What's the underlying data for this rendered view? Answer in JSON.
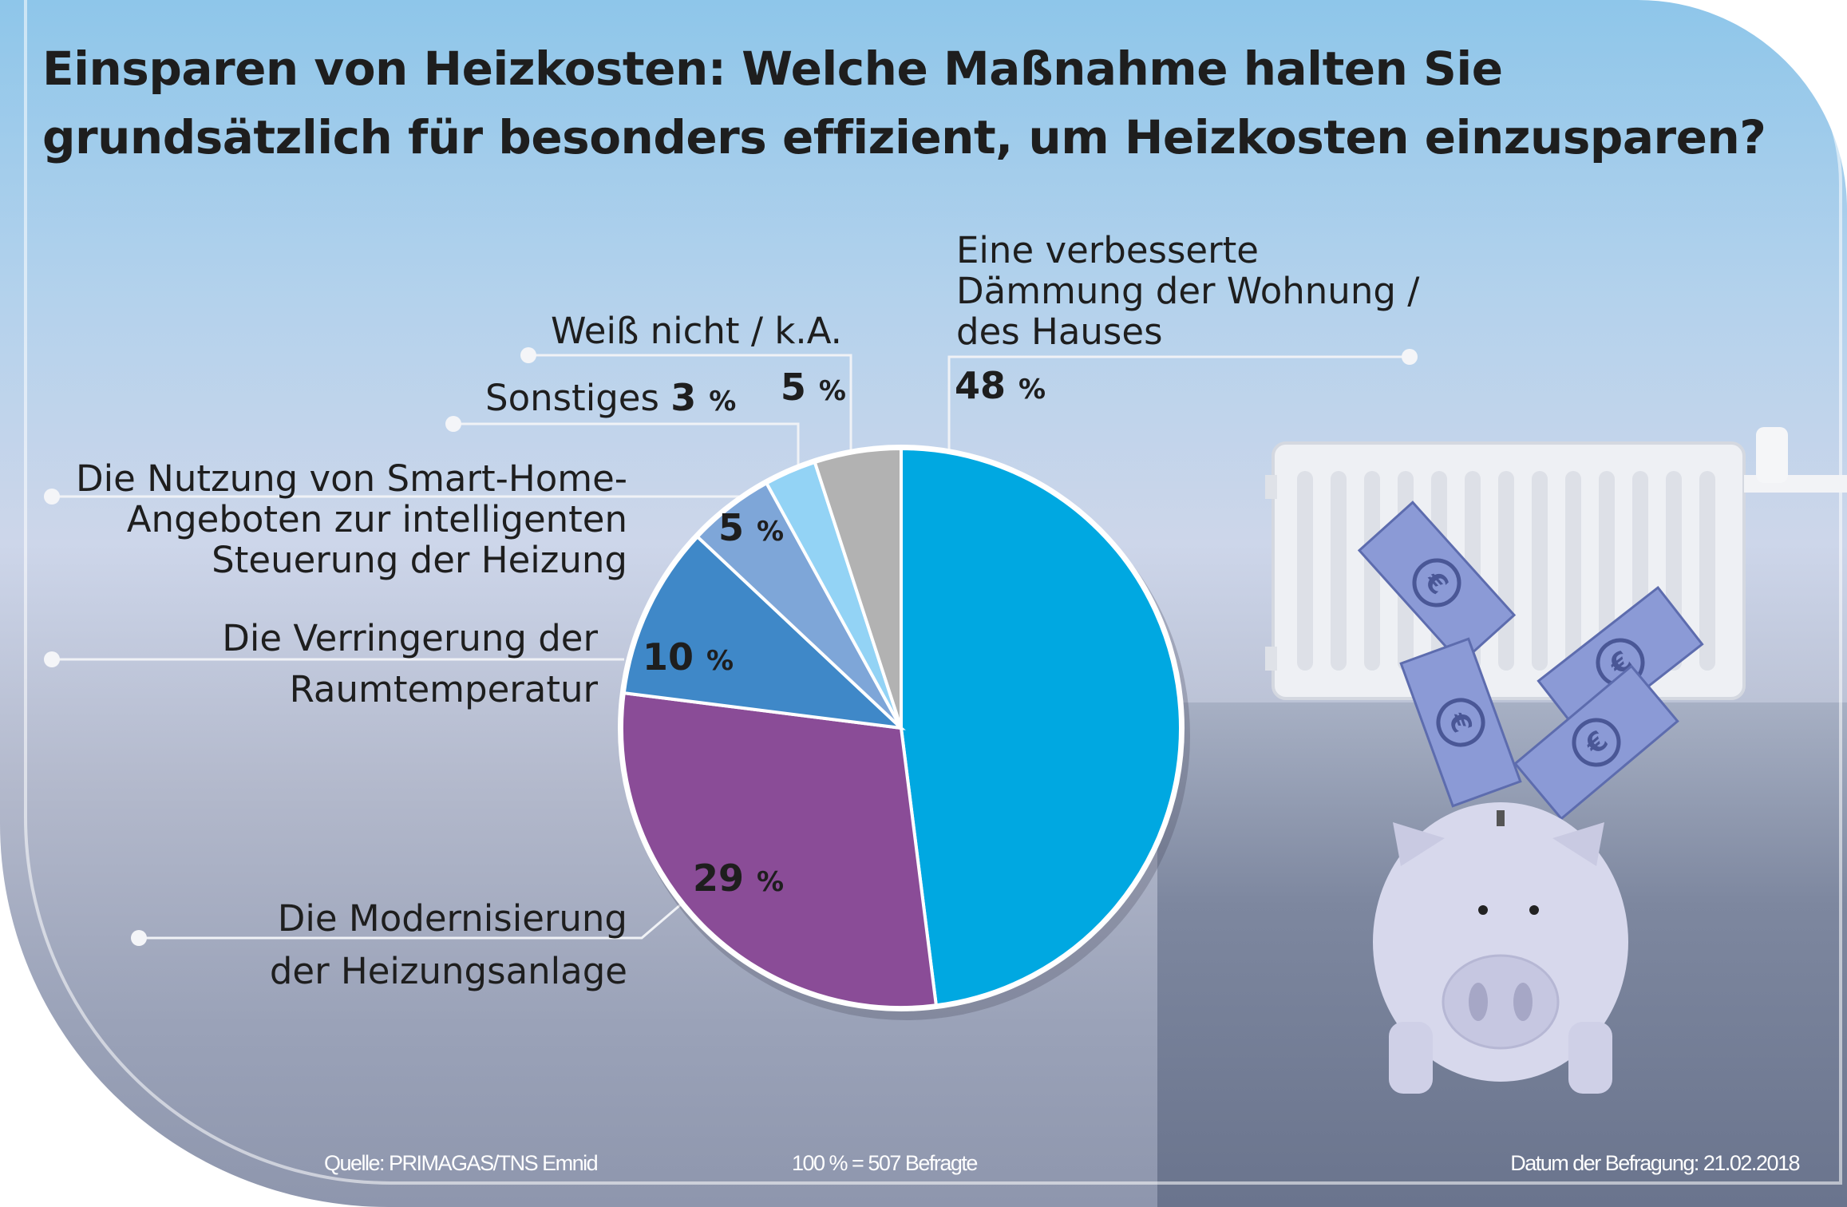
{
  "title": {
    "line1": "Einsparen von Heizkosten: Welche Maßnahme halten Sie",
    "line2": "grundsätzlich für besonders effizient, um Heizkosten einzusparen?"
  },
  "chart_data": {
    "type": "pie",
    "title": "Einsparen von Heizkosten: Welche Maßnahme halten Sie grundsätzlich für besonders effizient, um Heizkosten einzusparen?",
    "unit": "%",
    "start": "12 o'clock, clockwise",
    "slices": [
      {
        "label": "Eine verbesserte Dämmung der Wohnung / des Hauses",
        "lines": [
          "Eine verbesserte",
          "Dämmung der Wohnung /",
          "des Hauses"
        ],
        "value": 48,
        "value_label": "48",
        "color": "#00a8e1"
      },
      {
        "label": "Die Modernisierung der Heizungsanlage",
        "lines": [
          "Die Modernisierung",
          "der Heizungsanlage"
        ],
        "value": 29,
        "value_label": "29",
        "color": "#8a4c97"
      },
      {
        "label": "Die Verringerung der Raumtemperatur",
        "lines": [
          "Die Verringerung der",
          "Raumtemperatur"
        ],
        "value": 10,
        "value_label": "10",
        "color": "#3f88c8"
      },
      {
        "label": "Die Nutzung von Smart-Home-Angeboten zur intelligenten Steuerung der Heizung",
        "lines": [
          "Die Nutzung von Smart-Home-",
          "Angeboten zur intelligenten",
          "Steuerung der Heizung"
        ],
        "value": 5,
        "value_label": "5",
        "color": "#7ea6d8"
      },
      {
        "label": "Sonstiges",
        "lines": [
          "Sonstiges"
        ],
        "value": 3,
        "value_label": "3",
        "color": "#93d3f5"
      },
      {
        "label": "Weiß nicht / k.A.",
        "lines": [
          "Weiß nicht / k.A."
        ],
        "value": 5,
        "value_label": "5",
        "color": "#b2b2b2"
      }
    ],
    "percent_sign": "%"
  },
  "footer": {
    "source": "Quelle: PRIMAGAS/TNS Emnid",
    "base": "100 % = 507 Befragte",
    "date": "Datum der Befragung: 21.02.2018"
  },
  "icons": [
    "radiator",
    "euro-banknote",
    "piggy-bank"
  ]
}
